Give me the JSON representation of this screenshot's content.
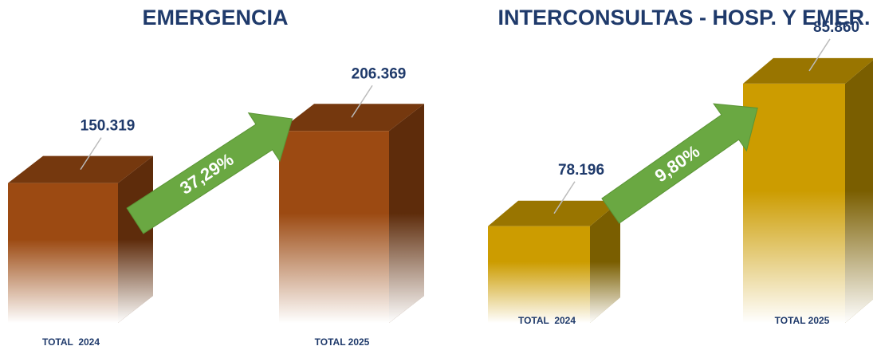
{
  "chart_data": [
    {
      "type": "bar3d",
      "title": "EMERGENCIA",
      "categories": [
        "TOTAL  2024",
        "TOTAL 2025"
      ],
      "values": [
        150319,
        206369
      ],
      "value_labels": [
        "150.319",
        "206.369"
      ],
      "color": "#9c4a12",
      "ylim": [
        0,
        300000
      ],
      "annotations": [
        "37,29%"
      ]
    },
    {
      "type": "bar3d",
      "title": "INTERCONSULTAS - HOSP. Y EMER.",
      "categories": [
        "TOTAL  2024",
        "TOTAL 2025"
      ],
      "values": [
        78196,
        85860
      ],
      "value_labels": [
        "78.196",
        "85.860"
      ],
      "color": "#cc9c00",
      "ylim": [
        73000,
        88000
      ],
      "annotations": [
        "9,80%"
      ]
    }
  ]
}
